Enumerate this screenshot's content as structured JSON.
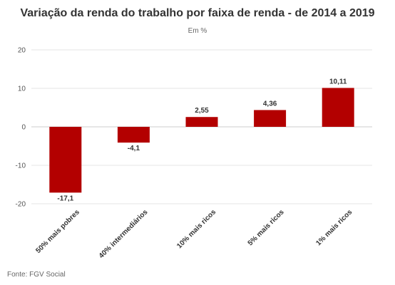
{
  "title": "Variação da renda do trabalho por faixa de renda - de 2014 a 2019",
  "subtitle": "Em %",
  "source": "Fonte: FGV Social",
  "colors": {
    "bar": "#b30000",
    "grid": "#e6e6e6",
    "axis": "#cccccc",
    "tick_text": "#555555",
    "label_text": "#333333"
  },
  "chart_data": {
    "type": "bar",
    "categories": [
      "50% mais pobres",
      "40% intermediários",
      "10% mais ricos",
      "5% mais ricos",
      "1% mais ricos"
    ],
    "values": [
      -17.1,
      -4.1,
      2.55,
      4.36,
      10.11
    ],
    "data_labels": [
      "-17,1",
      "-4,1",
      "2,55",
      "4,36",
      "10,11"
    ],
    "yticks": [
      20,
      10,
      0,
      -10,
      -20
    ],
    "ylim": [
      -20,
      20
    ],
    "grid": true,
    "xlabel": "",
    "ylabel": ""
  }
}
